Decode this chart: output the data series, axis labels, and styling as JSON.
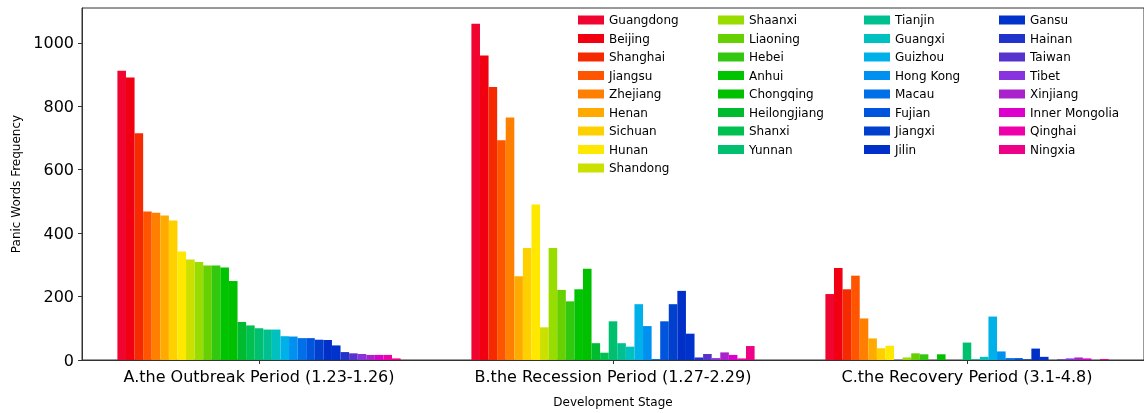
{
  "chart_data": {
    "type": "bar",
    "xlabel": "Development Stage",
    "ylabel": "Panic Words Frequency",
    "categories": [
      "A.the Outbreak Period (1.23-1.26)",
      "B.the Recession Period (1.27-2.29)",
      "C.the Recovery Period (3.1-4.8)"
    ],
    "ylim": [
      0,
      1110
    ],
    "yticks": [
      0,
      200,
      400,
      600,
      800,
      1000
    ],
    "grid": false,
    "legend": "top right",
    "series": [
      {
        "name": "Guangdong",
        "color": "#f00530",
        "values": [
          912,
          1060,
          208
        ]
      },
      {
        "name": "Beijing",
        "color": "#f00010",
        "values": [
          891,
          960,
          290
        ]
      },
      {
        "name": "Shanghai",
        "color": "#f52a00",
        "values": [
          715,
          861,
          223
        ]
      },
      {
        "name": "Jiangsu",
        "color": "#ff5500",
        "values": [
          468,
          693,
          266
        ]
      },
      {
        "name": "Zhejiang",
        "color": "#ff8000",
        "values": [
          464,
          765,
          131
        ]
      },
      {
        "name": "Henan",
        "color": "#ffaa00",
        "values": [
          456,
          264,
          68
        ]
      },
      {
        "name": "Sichuan",
        "color": "#ffd000",
        "values": [
          440,
          353,
          37
        ]
      },
      {
        "name": "Hunan",
        "color": "#ffe800",
        "values": [
          342,
          490,
          45
        ]
      },
      {
        "name": "Shandong",
        "color": "#cce000",
        "values": [
          317,
          103,
          0
        ]
      },
      {
        "name": "Shaanxi",
        "color": "#99dd00",
        "values": [
          309,
          353,
          8
        ]
      },
      {
        "name": "Liaoning",
        "color": "#66d000",
        "values": [
          298,
          221,
          21
        ]
      },
      {
        "name": "Hebei",
        "color": "#33c810",
        "values": [
          298,
          185,
          18
        ]
      },
      {
        "name": "Anhui",
        "color": "#00c400",
        "values": [
          292,
          223,
          0
        ]
      },
      {
        "name": "Chongqing",
        "color": "#00c000",
        "values": [
          249,
          288,
          18
        ]
      },
      {
        "name": "Heilongjiang",
        "color": "#00bb30",
        "values": [
          120,
          53,
          0
        ]
      },
      {
        "name": "Shanxi",
        "color": "#00c050",
        "values": [
          109,
          23,
          0
        ]
      },
      {
        "name": "Yunnan",
        "color": "#00c070",
        "values": [
          100,
          122,
          55
        ]
      },
      {
        "name": "Tianjin",
        "color": "#00c090",
        "values": [
          96,
          53,
          2
        ]
      },
      {
        "name": "Guangxi",
        "color": "#00c0c0",
        "values": [
          96,
          42,
          10
        ]
      },
      {
        "name": "Guizhou",
        "color": "#00b0e8",
        "values": [
          75,
          176,
          137
        ]
      },
      {
        "name": "Hong Kong",
        "color": "#0090f0",
        "values": [
          74,
          107,
          27
        ]
      },
      {
        "name": "Macau",
        "color": "#0070e8",
        "values": [
          69,
          3,
          6
        ]
      },
      {
        "name": "Fujian",
        "color": "#0055dd",
        "values": [
          69,
          122,
          6
        ]
      },
      {
        "name": "Jiangxi",
        "color": "#0040cc",
        "values": [
          64,
          176,
          2
        ]
      },
      {
        "name": "Jilin",
        "color": "#0030c8",
        "values": [
          63,
          218,
          36
        ]
      },
      {
        "name": "Gansu",
        "color": "#0033cc",
        "values": [
          46,
          83,
          10
        ]
      },
      {
        "name": "Hainan",
        "color": "#2233cc",
        "values": [
          25,
          8,
          0
        ]
      },
      {
        "name": "Taiwan",
        "color": "#5533cc",
        "values": [
          21,
          19,
          2
        ]
      },
      {
        "name": "Tibet",
        "color": "#8833dd",
        "values": [
          19,
          6,
          5
        ]
      },
      {
        "name": "Xinjiang",
        "color": "#aa22cc",
        "values": [
          16,
          24,
          8
        ]
      },
      {
        "name": "Inner Mongolia",
        "color": "#dd00cc",
        "values": [
          16,
          16,
          5
        ]
      },
      {
        "name": "Qinghai",
        "color": "#ee00aa",
        "values": [
          16,
          5,
          0
        ]
      },
      {
        "name": "Ningxia",
        "color": "#ee0088",
        "values": [
          5,
          44,
          3
        ]
      }
    ]
  }
}
